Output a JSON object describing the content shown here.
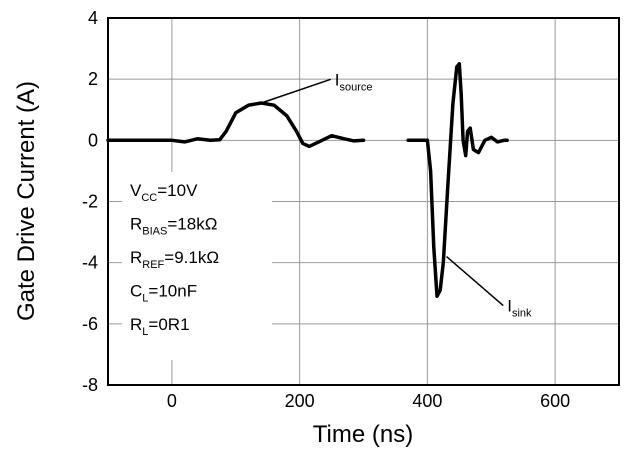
{
  "chart_data": {
    "type": "line",
    "xlabel": "Time (ns)",
    "ylabel": "Gate Drive Current (A)",
    "xlim": [
      -100,
      700
    ],
    "ylim": [
      -8,
      4
    ],
    "x_ticks": [
      "0",
      "200",
      "400",
      "600"
    ],
    "y_ticks": [
      "4",
      "2",
      "0",
      "-2",
      "-4",
      "-6",
      "-8"
    ],
    "grid": true,
    "series": [
      {
        "name": "Isource",
        "x": [
          -100,
          0,
          20,
          40,
          60,
          75,
          85,
          100,
          120,
          140,
          160,
          180,
          195,
          205,
          215,
          230,
          250,
          270,
          285,
          300
        ],
        "y": [
          0,
          0,
          -0.05,
          0.05,
          0,
          0.02,
          0.3,
          0.9,
          1.15,
          1.22,
          1.15,
          0.8,
          0.3,
          -0.1,
          -0.2,
          -0.05,
          0.15,
          0.05,
          -0.02,
          0
        ]
      },
      {
        "name": "Isink",
        "x": [
          370,
          385,
          395,
          400,
          405,
          410,
          415,
          420,
          425,
          432,
          440,
          446,
          450,
          453,
          456,
          460,
          463,
          467,
          472,
          480,
          490,
          500,
          510,
          520,
          525
        ],
        "y": [
          0,
          0,
          0,
          0,
          -1.0,
          -3.5,
          -5.1,
          -4.9,
          -4.0,
          -1.5,
          1.2,
          2.4,
          2.5,
          1.5,
          0.0,
          -0.5,
          0.3,
          0.4,
          -0.3,
          -0.4,
          0.0,
          0.1,
          -0.05,
          0,
          0
        ]
      }
    ],
    "annotations": [
      {
        "text": "I",
        "sub": "source",
        "label_x": 255,
        "label_y": 1.8,
        "target_x": 140,
        "target_y": 1.22
      },
      {
        "text": "I",
        "sub": "sink",
        "label_x": 525,
        "label_y": -5.6,
        "target_x": 430,
        "target_y": -3.8
      }
    ],
    "conditions": [
      {
        "main": "V",
        "sub": "CC",
        "rest": "=10V"
      },
      {
        "main": "R",
        "sub": "BIAS",
        "rest": "=18kΩ"
      },
      {
        "main": "R",
        "sub": "REF",
        "rest": "=9.1kΩ"
      },
      {
        "main": "C",
        "sub": "L",
        "rest": "=10nF"
      },
      {
        "main": "R",
        "sub": "L",
        "rest": "=0R1"
      }
    ]
  }
}
